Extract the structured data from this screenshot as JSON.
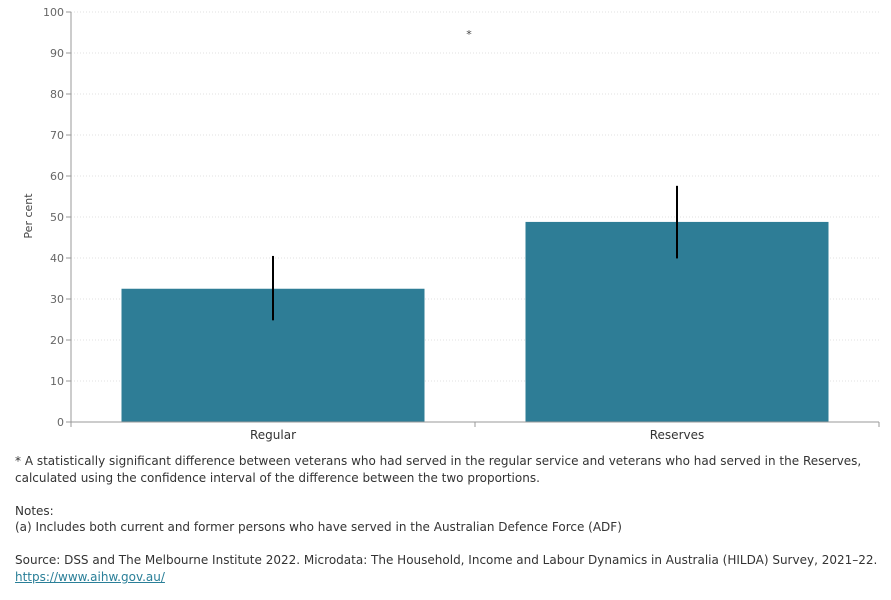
{
  "chart_data": {
    "type": "bar",
    "categories": [
      "Regular",
      "Reserves"
    ],
    "values": [
      32.5,
      48.8
    ],
    "error_bars": [
      {
        "low": 24.8,
        "high": 40.5
      },
      {
        "low": 39.9,
        "high": 57.6
      }
    ],
    "ylabel": "Per cent",
    "xlabel": "",
    "ylim": [
      0,
      100
    ],
    "yticks": [
      0,
      10,
      20,
      30,
      40,
      50,
      60,
      70,
      80,
      90,
      100
    ],
    "grid": true,
    "bar_color": "#2e7d96",
    "error_color": "#000000",
    "annotation": "*"
  },
  "footnotes": {
    "significance": "* A statistically significant difference between veterans who had served in the regular service and veterans who had served in the Reserves, calculated using the confidence interval of the difference between the two proportions.",
    "notes_heading": "Notes:",
    "note_a": "(a) Includes both current and former persons who have served in the Australian Defence Force (ADF)",
    "source": "Source: DSS and The Melbourne Institute 2022. Microdata: The Household, Income and Labour Dynamics in Australia (HILDA) Survey, 2021–22.",
    "link": "https://www.aihw.gov.au/"
  }
}
